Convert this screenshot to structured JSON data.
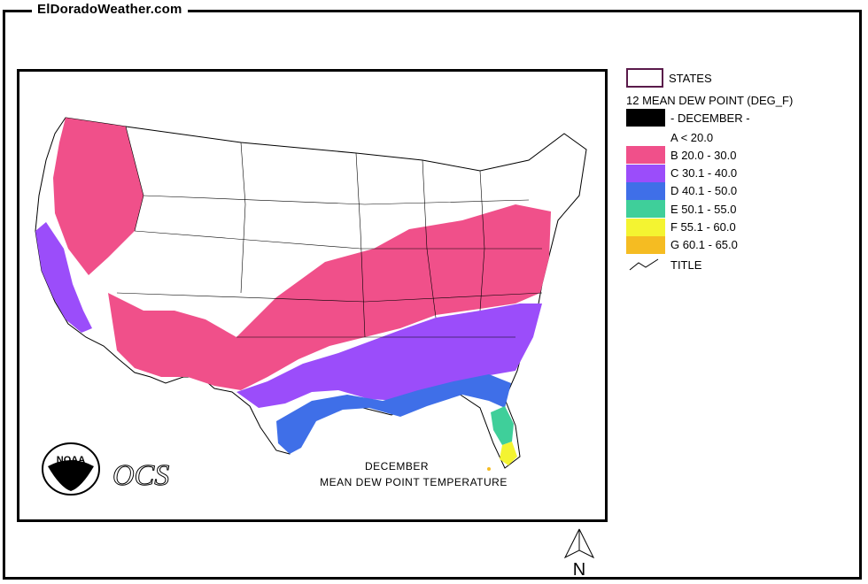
{
  "site": {
    "title": "ElDoradoWeather.com"
  },
  "legend": {
    "states_label": "STATES",
    "layer_title": "12 MEAN DEW POINT (DEG_F)",
    "month_label": "- DECEMBER -",
    "classes": [
      {
        "label": "A < 20.0",
        "color": "#ffffff"
      },
      {
        "label": "B 20.0 - 30.0",
        "color": "#f0508a"
      },
      {
        "label": "C 30.1 - 40.0",
        "color": "#9b4dfa"
      },
      {
        "label": "D 40.1 - 50.0",
        "color": "#3f6fe8"
      },
      {
        "label": "E 50.1 - 55.0",
        "color": "#3fcf9a"
      },
      {
        "label": "F 55.1 - 60.0",
        "color": "#f4f431"
      },
      {
        "label": "G 60.1 - 65.0",
        "color": "#f5bc22"
      }
    ],
    "title_label": "TITLE"
  },
  "map": {
    "caption_line1": "DECEMBER",
    "caption_line2": "MEAN DEW POINT TEMPERATURE",
    "logo_text": "NOAA",
    "ocs_text": "OCS"
  },
  "compass": {
    "label": "N"
  }
}
